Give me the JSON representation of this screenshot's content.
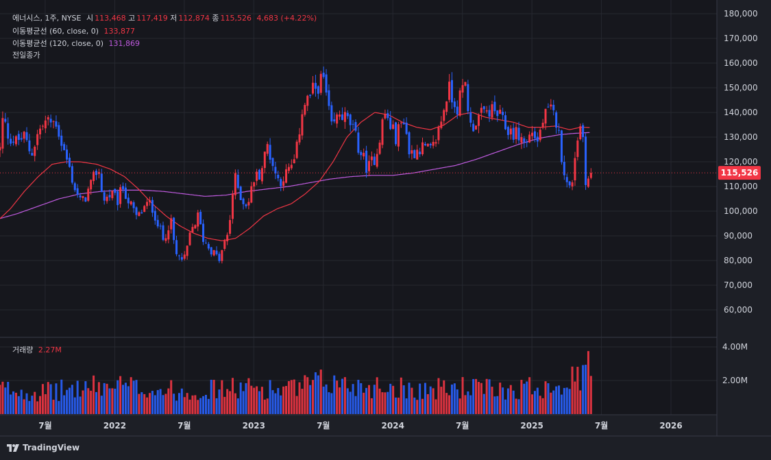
{
  "colors": {
    "background": "#1d1f26",
    "plot_bg": "#16171d",
    "grid": "#262830",
    "axis_text": "#d1d4dc",
    "up": "#f23645",
    "down": "#2962ff",
    "ma60": "#f23645",
    "ma120": "#c05be0",
    "price_label_bg": "#f23645"
  },
  "legend": {
    "symbol": "에너시스, 1주, NYSE",
    "open_label": "시",
    "open": "113,468",
    "high_label": "고",
    "high": "117,419",
    "low_label": "저",
    "low": "112,874",
    "close_label": "종",
    "close": "115,526",
    "change": "4,683 (+4.22%)",
    "ma60_label": "이동평균선 (60, close, 0)",
    "ma60_value": "133,877",
    "ma120_label": "이동평균선 (120, close, 0)",
    "ma120_value": "131,869",
    "prev_close_label": "전일종가",
    "volume_label": "거래량",
    "volume_value": "2.27M"
  },
  "brand": "TradingView",
  "chart_data": {
    "type": "candlestick",
    "interval": "1 week",
    "price_axis": {
      "min": 50000,
      "max": 180000,
      "ticks": [
        "60,000",
        "70,000",
        "80,000",
        "90,000",
        "100,000",
        "110,000",
        "120,000",
        "130,000",
        "140,000",
        "150,000",
        "160,000",
        "170,000",
        "180,000"
      ],
      "tick_values": [
        60000,
        70000,
        80000,
        90000,
        100000,
        110000,
        120000,
        130000,
        140000,
        150000,
        160000,
        170000,
        180000
      ]
    },
    "volume_axis": {
      "min": 0,
      "max": 4400000,
      "ticks": [
        "2.00M",
        "4.00M"
      ],
      "tick_values": [
        2000000,
        4000000
      ]
    },
    "time_axis": {
      "labels": [
        "7월",
        "2022",
        "7월",
        "2023",
        "7월",
        "2024",
        "7월",
        "2025",
        "7월",
        "2026"
      ],
      "label_dates": [
        2021.5,
        2022.0,
        2022.5,
        2023.0,
        2023.5,
        2024.0,
        2024.5,
        2025.0,
        2025.5,
        2026.0
      ],
      "start": 2021.175,
      "end": 2026.33
    },
    "last_price": 115526,
    "last_price_label": "115,526",
    "price_anchors": [
      [
        2021.175,
        125000
      ],
      [
        2021.2,
        140000
      ],
      [
        2021.22,
        132000
      ],
      [
        2021.28,
        128000
      ],
      [
        2021.35,
        130000
      ],
      [
        2021.4,
        123000
      ],
      [
        2021.45,
        132000
      ],
      [
        2021.5,
        136000
      ],
      [
        2021.58,
        136000
      ],
      [
        2021.62,
        127000
      ],
      [
        2021.66,
        120000
      ],
      [
        2021.72,
        108000
      ],
      [
        2021.76,
        103000
      ],
      [
        2021.82,
        109000
      ],
      [
        2021.88,
        118000
      ],
      [
        2021.92,
        104000
      ],
      [
        2021.97,
        107000
      ],
      [
        2022.02,
        104000
      ],
      [
        2022.06,
        110000
      ],
      [
        2022.1,
        104000
      ],
      [
        2022.16,
        97000
      ],
      [
        2022.22,
        102000
      ],
      [
        2022.26,
        103000
      ],
      [
        2022.3,
        97000
      ],
      [
        2022.35,
        88000
      ],
      [
        2022.4,
        97000
      ],
      [
        2022.44,
        82000
      ],
      [
        2022.5,
        80000
      ],
      [
        2022.55,
        92000
      ],
      [
        2022.6,
        98000
      ],
      [
        2022.64,
        88000
      ],
      [
        2022.7,
        84000
      ],
      [
        2022.75,
        80000
      ],
      [
        2022.82,
        92000
      ],
      [
        2022.86,
        114000
      ],
      [
        2022.92,
        104000
      ],
      [
        2022.96,
        103000
      ],
      [
        2023.0,
        113000
      ],
      [
        2023.05,
        116000
      ],
      [
        2023.1,
        127000
      ],
      [
        2023.14,
        118000
      ],
      [
        2023.18,
        112000
      ],
      [
        2023.25,
        116000
      ],
      [
        2023.3,
        121000
      ],
      [
        2023.35,
        142000
      ],
      [
        2023.42,
        148000
      ],
      [
        2023.5,
        154000
      ],
      [
        2023.56,
        133000
      ],
      [
        2023.62,
        140000
      ],
      [
        2023.7,
        135000
      ],
      [
        2023.76,
        125000
      ],
      [
        2023.82,
        117000
      ],
      [
        2023.88,
        123000
      ],
      [
        2023.94,
        140000
      ],
      [
        2024.02,
        130000
      ],
      [
        2024.08,
        138000
      ],
      [
        2024.12,
        123000
      ],
      [
        2024.2,
        126000
      ],
      [
        2024.28,
        124000
      ],
      [
        2024.34,
        135000
      ],
      [
        2024.4,
        150000
      ],
      [
        2024.46,
        142000
      ],
      [
        2024.52,
        152000
      ],
      [
        2024.56,
        134000
      ],
      [
        2024.62,
        138000
      ],
      [
        2024.7,
        141000
      ],
      [
        2024.76,
        139000
      ],
      [
        2024.82,
        133000
      ],
      [
        2024.9,
        131000
      ],
      [
        2024.96,
        127000
      ],
      [
        2025.0,
        133000
      ],
      [
        2025.04,
        128000
      ],
      [
        2025.08,
        137000
      ],
      [
        2025.13,
        141000
      ],
      [
        2025.18,
        136000
      ],
      [
        2025.21,
        124000
      ],
      [
        2025.25,
        111000
      ],
      [
        2025.28,
        108000
      ],
      [
        2025.32,
        128000
      ],
      [
        2025.36,
        137000
      ],
      [
        2025.39,
        110000
      ],
      [
        2025.42,
        115526
      ]
    ],
    "ma60_anchors": [
      [
        2021.175,
        97000
      ],
      [
        2021.25,
        101000
      ],
      [
        2021.35,
        108000
      ],
      [
        2021.45,
        114000
      ],
      [
        2021.55,
        119000
      ],
      [
        2021.65,
        120000
      ],
      [
        2021.75,
        120000
      ],
      [
        2021.87,
        119000
      ],
      [
        2021.97,
        117000
      ],
      [
        2022.07,
        114000
      ],
      [
        2022.17,
        109000
      ],
      [
        2022.27,
        103000
      ],
      [
        2022.37,
        98000
      ],
      [
        2022.47,
        94000
      ],
      [
        2022.57,
        91000
      ],
      [
        2022.67,
        89000
      ],
      [
        2022.77,
        88000
      ],
      [
        2022.87,
        89000
      ],
      [
        2022.97,
        93000
      ],
      [
        2023.07,
        98000
      ],
      [
        2023.17,
        101000
      ],
      [
        2023.27,
        103000
      ],
      [
        2023.37,
        107000
      ],
      [
        2023.47,
        112000
      ],
      [
        2023.57,
        120000
      ],
      [
        2023.67,
        130000
      ],
      [
        2023.77,
        136000
      ],
      [
        2023.87,
        140000
      ],
      [
        2023.97,
        139000
      ],
      [
        2024.07,
        136000
      ],
      [
        2024.17,
        134000
      ],
      [
        2024.27,
        133000
      ],
      [
        2024.37,
        135000
      ],
      [
        2024.47,
        139000
      ],
      [
        2024.57,
        140000
      ],
      [
        2024.67,
        138000
      ],
      [
        2024.77,
        137000
      ],
      [
        2024.87,
        136000
      ],
      [
        2024.97,
        134000
      ],
      [
        2025.07,
        134000
      ],
      [
        2025.17,
        134500
      ],
      [
        2025.27,
        133000
      ],
      [
        2025.35,
        134000
      ],
      [
        2025.42,
        133877
      ]
    ],
    "ma120_anchors": [
      [
        2021.175,
        97000
      ],
      [
        2021.3,
        99000
      ],
      [
        2021.45,
        102000
      ],
      [
        2021.6,
        105000
      ],
      [
        2021.75,
        107000
      ],
      [
        2021.9,
        108000
      ],
      [
        2022.05,
        108500
      ],
      [
        2022.2,
        108500
      ],
      [
        2022.35,
        108000
      ],
      [
        2022.5,
        107000
      ],
      [
        2022.65,
        106000
      ],
      [
        2022.8,
        106500
      ],
      [
        2022.95,
        108000
      ],
      [
        2023.1,
        109000
      ],
      [
        2023.25,
        110000
      ],
      [
        2023.4,
        111500
      ],
      [
        2023.55,
        113000
      ],
      [
        2023.7,
        114000
      ],
      [
        2023.85,
        114500
      ],
      [
        2024.0,
        114500
      ],
      [
        2024.15,
        115500
      ],
      [
        2024.3,
        117000
      ],
      [
        2024.45,
        118500
      ],
      [
        2024.6,
        121000
      ],
      [
        2024.75,
        124000
      ],
      [
        2024.9,
        127000
      ],
      [
        2025.05,
        129500
      ],
      [
        2025.2,
        131000
      ],
      [
        2025.3,
        131500
      ],
      [
        2025.42,
        131869
      ]
    ],
    "volume_anchors": [
      [
        2021.175,
        1500000
      ],
      [
        2021.5,
        1300000
      ],
      [
        2021.75,
        1550000
      ],
      [
        2022.0,
        1700000
      ],
      [
        2022.25,
        1500000
      ],
      [
        2022.5,
        1350000
      ],
      [
        2022.75,
        1500000
      ],
      [
        2023.0,
        1550000
      ],
      [
        2023.25,
        1450000
      ],
      [
        2023.5,
        1900000
      ],
      [
        2023.75,
        1700000
      ],
      [
        2024.0,
        1650000
      ],
      [
        2024.25,
        1450000
      ],
      [
        2024.5,
        1600000
      ],
      [
        2024.75,
        1450000
      ],
      [
        2025.0,
        1600000
      ],
      [
        2025.25,
        1950000
      ],
      [
        2025.42,
        2270000
      ]
    ],
    "volume_last": 2270000,
    "volume_peak": 3750000
  }
}
